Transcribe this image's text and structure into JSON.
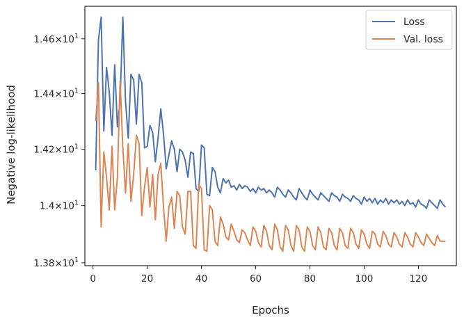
{
  "chart_data": {
    "type": "line",
    "xlabel": "Epochs",
    "ylabel": "Negative log-likelihood",
    "y_scale": "log",
    "xlim": [
      -3,
      134
    ],
    "ylim": [
      13.79,
      14.72
    ],
    "grid": false,
    "legend_position": "top-right",
    "x_ticks": [
      {
        "value": 0,
        "label": "0"
      },
      {
        "value": 20,
        "label": "20"
      },
      {
        "value": 40,
        "label": "40"
      },
      {
        "value": 60,
        "label": "60"
      },
      {
        "value": 80,
        "label": "80"
      },
      {
        "value": 100,
        "label": "100"
      },
      {
        "value": 120,
        "label": "120"
      }
    ],
    "y_ticks": [
      {
        "value": 13.8,
        "mantissa": "1.38",
        "base": "10",
        "exp": "1"
      },
      {
        "value": 14.0,
        "mantissa": "1.4",
        "base": "10",
        "exp": "1"
      },
      {
        "value": 14.2,
        "mantissa": "1.42",
        "base": "10",
        "exp": "1"
      },
      {
        "value": 14.4,
        "mantissa": "1.44",
        "base": "10",
        "exp": "1"
      },
      {
        "value": 14.6,
        "mantissa": "1.46",
        "base": "10",
        "exp": "1"
      }
    ],
    "x": [
      1,
      2,
      3,
      4,
      5,
      6,
      7,
      8,
      9,
      10,
      11,
      12,
      13,
      14,
      15,
      16,
      17,
      18,
      19,
      20,
      21,
      22,
      23,
      24,
      25,
      26,
      27,
      28,
      29,
      30,
      31,
      32,
      33,
      34,
      35,
      36,
      37,
      38,
      39,
      40,
      41,
      42,
      43,
      44,
      45,
      46,
      47,
      48,
      49,
      50,
      51,
      52,
      53,
      54,
      55,
      56,
      57,
      58,
      59,
      60,
      61,
      62,
      63,
      64,
      65,
      66,
      67,
      68,
      69,
      70,
      71,
      72,
      73,
      74,
      75,
      76,
      77,
      78,
      79,
      80,
      81,
      82,
      83,
      84,
      85,
      86,
      87,
      88,
      89,
      90,
      91,
      92,
      93,
      94,
      95,
      96,
      97,
      98,
      99,
      100,
      101,
      102,
      103,
      104,
      105,
      106,
      107,
      108,
      109,
      110,
      111,
      112,
      113,
      114,
      115,
      116,
      117,
      118,
      119,
      120,
      121,
      122,
      123,
      124,
      125,
      126,
      127,
      128,
      129,
      130
    ],
    "series": [
      {
        "name": "Loss",
        "color": "#4c72b0",
        "values": [
          14.125,
          14.595,
          14.68,
          14.265,
          14.495,
          14.405,
          14.25,
          14.505,
          14.28,
          14.375,
          14.68,
          14.37,
          14.24,
          14.47,
          14.45,
          14.29,
          14.47,
          14.44,
          14.205,
          14.21,
          14.285,
          14.26,
          14.155,
          14.24,
          14.345,
          14.255,
          14.13,
          14.18,
          14.23,
          14.2,
          14.12,
          14.2,
          14.19,
          14.16,
          14.1,
          14.19,
          14.185,
          14.06,
          14.05,
          14.215,
          14.205,
          14.04,
          14.035,
          14.135,
          14.12,
          14.065,
          14.045,
          14.095,
          14.08,
          14.09,
          14.065,
          14.07,
          14.055,
          14.075,
          14.06,
          14.07,
          14.065,
          14.05,
          14.06,
          14.045,
          14.065,
          14.055,
          14.06,
          14.045,
          14.055,
          14.045,
          14.03,
          14.065,
          14.055,
          14.04,
          14.03,
          14.055,
          14.045,
          14.03,
          14.02,
          14.06,
          14.045,
          14.03,
          14.02,
          14.055,
          14.04,
          14.03,
          14.02,
          14.045,
          14.035,
          14.025,
          14.015,
          14.045,
          14.035,
          14.03,
          14.015,
          14.04,
          14.03,
          14.025,
          14.015,
          14.035,
          14.025,
          14.02,
          14.005,
          14.03,
          14.015,
          14.025,
          14.01,
          14.025,
          14.005,
          14.02,
          14.01,
          14.025,
          14.005,
          14.02,
          14.01,
          14.02,
          14.005,
          14.015,
          14.0,
          14.02,
          14.005,
          14.01,
          13.995,
          14.02,
          14.005,
          14.0,
          13.99,
          14.02,
          14.01,
          14.0,
          13.99,
          14.02,
          14.005,
          13.995
        ]
      },
      {
        "name": "Val. loss",
        "color": "#dd8452",
        "values": [
          14.3,
          14.44,
          13.925,
          14.19,
          14.1,
          13.985,
          14.21,
          13.985,
          14.1,
          14.445,
          14.205,
          14.045,
          14.22,
          14.015,
          14.11,
          14.25,
          14.22,
          13.965,
          14.065,
          14.135,
          13.995,
          14.11,
          13.95,
          14.11,
          14.15,
          13.995,
          13.875,
          13.995,
          14.03,
          13.92,
          14.05,
          14.035,
          13.925,
          13.9,
          14.05,
          14.05,
          13.86,
          13.85,
          14.075,
          14.06,
          13.845,
          13.84,
          14.0,
          13.985,
          13.875,
          13.86,
          13.96,
          13.935,
          13.89,
          13.88,
          13.935,
          13.91,
          13.88,
          13.87,
          13.915,
          13.905,
          13.88,
          13.86,
          13.925,
          13.91,
          13.87,
          13.855,
          13.93,
          13.91,
          13.86,
          13.845,
          13.935,
          13.915,
          13.855,
          13.84,
          13.93,
          13.915,
          13.86,
          13.84,
          13.93,
          13.915,
          13.855,
          13.84,
          13.925,
          13.91,
          13.86,
          13.845,
          13.925,
          13.905,
          13.855,
          13.845,
          13.92,
          13.905,
          13.86,
          13.845,
          13.92,
          13.905,
          13.86,
          13.85,
          13.92,
          13.905,
          13.865,
          13.85,
          13.915,
          13.9,
          13.865,
          13.85,
          13.91,
          13.9,
          13.865,
          13.855,
          13.91,
          13.895,
          13.865,
          13.855,
          13.905,
          13.89,
          13.865,
          13.855,
          13.905,
          13.89,
          13.865,
          13.855,
          13.905,
          13.89,
          13.87,
          13.86,
          13.9,
          13.885,
          13.87,
          13.86,
          13.895,
          13.875,
          13.875,
          13.875
        ]
      }
    ]
  }
}
